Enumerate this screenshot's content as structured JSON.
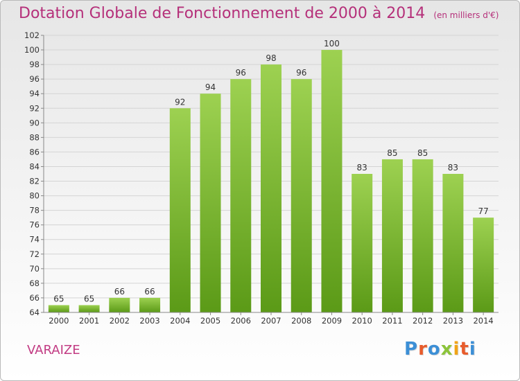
{
  "header": {
    "title": "Dotation Globale de Fonctionnement de 2000 à 2014",
    "subtitle": "(en milliers d'€)"
  },
  "footer": {
    "commune": "VARAIZE",
    "logo": "Proxiti"
  },
  "colors": {
    "bar_top": "#9dd151",
    "bar_bottom": "#5b9a17",
    "title": "#b5307a",
    "logo": [
      "#3c8fd6",
      "#e85c2c",
      "#3c8fd6",
      "#8cc43a",
      "#f0a418",
      "#e85c2c",
      "#3c8fd6"
    ]
  },
  "chart_data": {
    "type": "bar",
    "categories": [
      "2000",
      "2001",
      "2002",
      "2003",
      "2004",
      "2005",
      "2006",
      "2007",
      "2008",
      "2009",
      "2010",
      "2011",
      "2012",
      "2013",
      "2014"
    ],
    "values": [
      65,
      65,
      66,
      66,
      92,
      94,
      96,
      98,
      96,
      100,
      83,
      85,
      85,
      83,
      77
    ],
    "ylim": [
      64,
      102
    ],
    "yticks": [
      64,
      66,
      68,
      70,
      72,
      74,
      76,
      78,
      80,
      82,
      84,
      86,
      88,
      90,
      92,
      94,
      96,
      98,
      100,
      102
    ],
    "grid": true,
    "legend": "none"
  }
}
